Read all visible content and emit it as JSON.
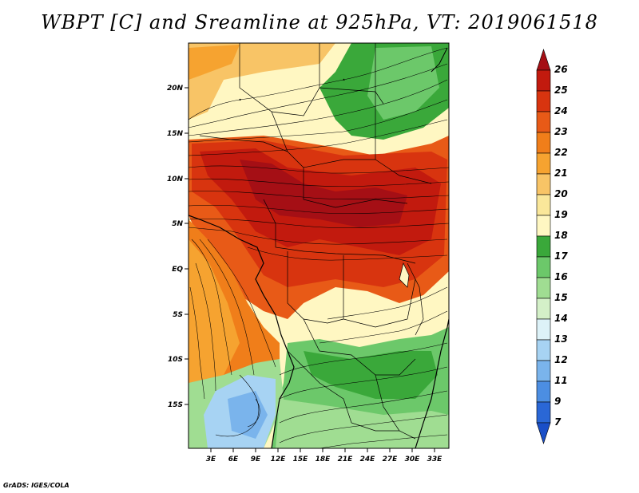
{
  "title": "WBPT [C] and Sreamline at 925hPa, VT: 2019061518",
  "credit": "GrADS: IGES/COLA",
  "map": {
    "lat_ticks": [
      "20N",
      "15N",
      "10N",
      "5N",
      "EQ",
      "5S",
      "10S",
      "15S"
    ],
    "lon_ticks": [
      "3E",
      "6E",
      "9E",
      "12E",
      "15E",
      "18E",
      "21E",
      "24E",
      "27E",
      "30E",
      "33E"
    ]
  },
  "colorbar": {
    "labels": [
      "26",
      "25",
      "24",
      "23",
      "22",
      "21",
      "20",
      "19",
      "18",
      "17",
      "16",
      "15",
      "14",
      "13",
      "12",
      "11",
      "9",
      "7"
    ],
    "colors": [
      "#a50f15",
      "#c21a0e",
      "#d8340f",
      "#e85a17",
      "#f07e1a",
      "#f6a330",
      "#f8c466",
      "#fae79a",
      "#fff7c2",
      "#3aa83a",
      "#6cc86a",
      "#a0dd92",
      "#d4f0c8",
      "#ddf2f8",
      "#a7d3f3",
      "#7ab4ec",
      "#4c8ee2",
      "#2a67d6",
      "#1a4fc8"
    ]
  }
}
